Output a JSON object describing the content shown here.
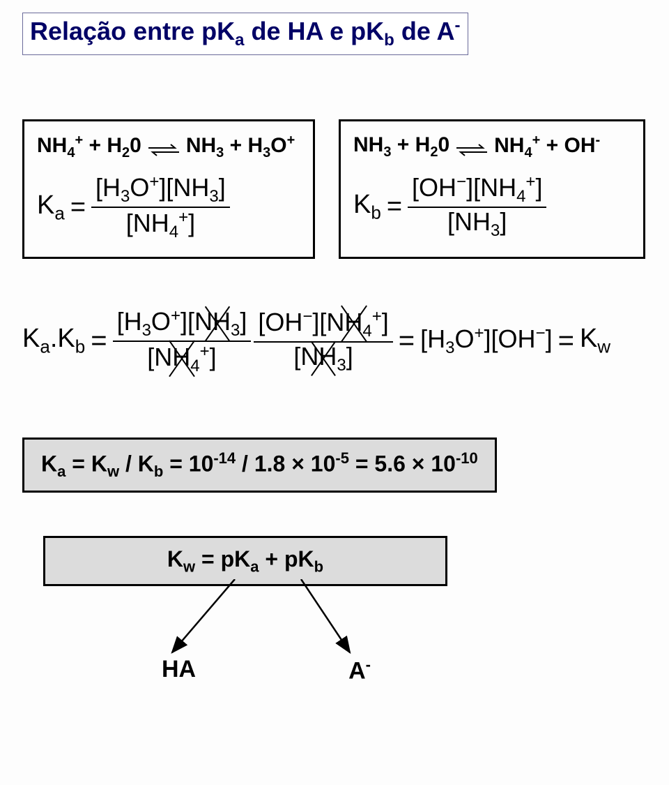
{
  "title": {
    "text_html": "Relação entre pK<sub>a</sub> de HA e pK<sub>b</sub> de A<sup>-</sup>",
    "color": "#000066",
    "border_color": "#6a6a9a",
    "fontsize": 36
  },
  "reaction_left": {
    "lhs_html": "NH<sub>4</sub><sup>+</sup> + H<sub>2</sub>0",
    "rhs_html": "NH<sub>3</sub> + H<sub>3</sub>O<sup>+</sup>",
    "K_label_html": "K<sub>a</sub>",
    "frac_num_html": "[H<sub>3</sub>O<sup>+</sup>][NH<sub>3</sub>]",
    "frac_den_html": "[NH<sub>4</sub><sup>+</sup>]"
  },
  "reaction_right": {
    "lhs_html": "NH<sub>3</sub> + H<sub>2</sub>0",
    "rhs_html": "NH<sub>4</sub><sup>+</sup> + OH<sup>-</sup>",
    "K_label_html": "K<sub>b</sub>",
    "frac_num_html": "[OH<sup>−</sup>][NH<sub>4</sub><sup>+</sup>]",
    "frac_den_html": "[NH<sub>3</sub>]"
  },
  "middle_eq": {
    "lhs_label_html": "K<sub>a</sub>.K<sub>b</sub>",
    "frac1_num_html": "[H<sub>3</sub>O<sup>+</sup>][NH<sub>3</sub>]",
    "frac1_den_html": "[NH<sub>4</sub><sup>+</sup>]",
    "frac2_num_html": "[OH<sup>−</sup>][NH<sub>4</sub><sup>+</sup>]",
    "frac2_den_html": "[NH<sub>3</sub>]",
    "rhs_html": "[H<sub>3</sub>O<sup>+</sup>][OH<sup>−</sup>]",
    "kw_html": "K<sub>w</sub>"
  },
  "conclusion1": {
    "text_html": "K<sub>a</sub> = K<sub>w</sub> / K<sub>b</sub> = 10<sup>-14</sup> / 1.8 × 10<sup>-5</sup> = 5.6 × 10<sup>-10</sup>",
    "bg": "#dcdcdc"
  },
  "conclusion2": {
    "text_html": "K<sub>w</sub> = pK<sub>a</sub> + pK<sub>b</sub>",
    "bg": "#dcdcdc",
    "left_label_html": "HA",
    "right_label_html": "A<sup>-</sup>"
  },
  "colors": {
    "border": "#000000",
    "grey_fill": "#dcdcdc",
    "page_bg": "#fdfdfd"
  }
}
